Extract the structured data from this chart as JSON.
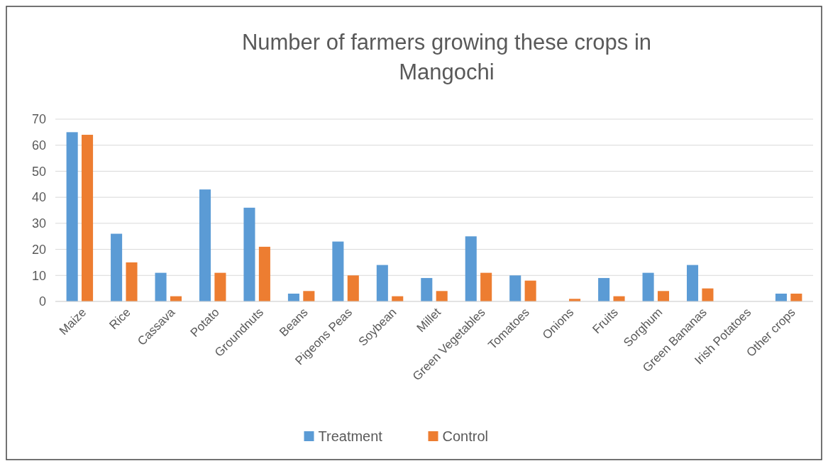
{
  "chart_data": {
    "type": "bar",
    "title": "Number of farmers growing these crops in Mangochi",
    "categories": [
      "Maize",
      "Rice",
      "Cassava",
      "Potato",
      "Groundnuts",
      "Beans",
      "Pigeons Peas",
      "Soybean",
      "Millet",
      "Green Vegetables",
      "Tomatoes",
      "Onions",
      "Fruits",
      "Sorghum",
      "Green Bananas",
      "Irish Potatoes",
      "Other crops"
    ],
    "series": [
      {
        "name": "Treatment",
        "color": "#5b9bd5",
        "values": [
          65,
          26,
          11,
          43,
          36,
          3,
          23,
          14,
          9,
          25,
          10,
          0,
          9,
          11,
          14,
          0,
          3
        ]
      },
      {
        "name": "Control",
        "color": "#ed7d31",
        "values": [
          64,
          15,
          2,
          11,
          21,
          4,
          10,
          2,
          4,
          11,
          8,
          1,
          2,
          4,
          5,
          0,
          3
        ]
      }
    ],
    "ylim": [
      0,
      70
    ],
    "yticks": [
      0,
      10,
      20,
      30,
      40,
      50,
      60,
      70
    ],
    "grid": "y",
    "legend": "bottom"
  }
}
